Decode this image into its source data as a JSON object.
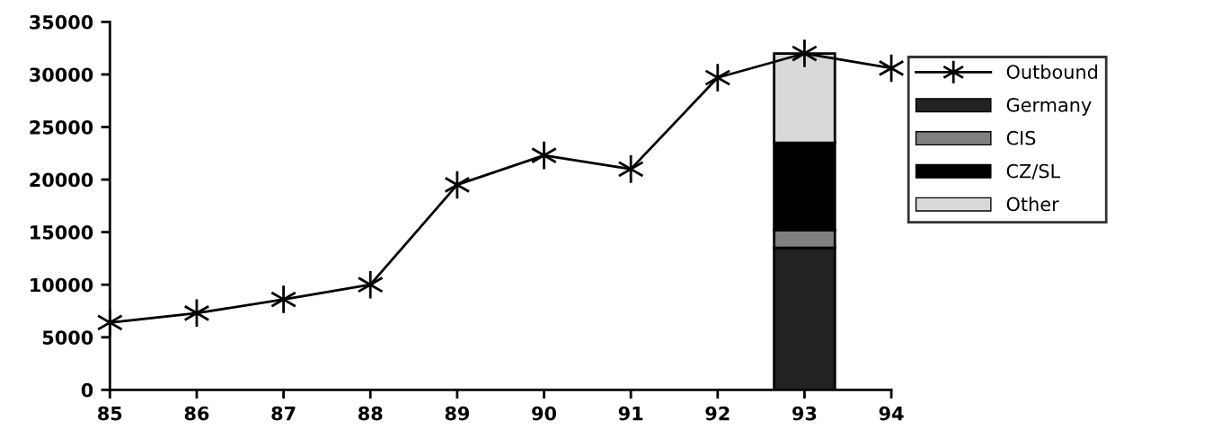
{
  "chart_data": {
    "type": "line",
    "categories": [
      "85",
      "86",
      "87",
      "88",
      "89",
      "90",
      "91",
      "92",
      "93",
      "94"
    ],
    "ylim": [
      0,
      35000
    ],
    "yticks": [
      0,
      5000,
      10000,
      15000,
      20000,
      25000,
      30000,
      35000
    ],
    "grid": false,
    "legend": "right",
    "stacked": true,
    "marker": "cross",
    "line_style": "solid",
    "series": [
      {
        "name": "Outbound",
        "color": "#000000",
        "values": [
          6400,
          7300,
          8600,
          10000,
          19500,
          22300,
          21000,
          29700,
          32000,
          30600
        ]
      },
      {
        "name": "Germany",
        "type": "bar",
        "color": "#222222",
        "values": [
          null,
          null,
          null,
          null,
          null,
          null,
          null,
          null,
          13500,
          null
        ]
      },
      {
        "name": "CIS",
        "type": "bar",
        "color": "#808080",
        "values": [
          null,
          null,
          null,
          null,
          null,
          null,
          null,
          null,
          1700,
          null
        ]
      },
      {
        "name": "CZ/SL",
        "type": "bar",
        "color": "#000000",
        "values": [
          null,
          null,
          null,
          null,
          null,
          null,
          null,
          null,
          8300,
          null
        ]
      },
      {
        "name": "Other",
        "type": "bar",
        "color": "#d9d9d9",
        "values": [
          null,
          null,
          null,
          null,
          null,
          null,
          null,
          null,
          8500,
          null
        ]
      }
    ]
  }
}
